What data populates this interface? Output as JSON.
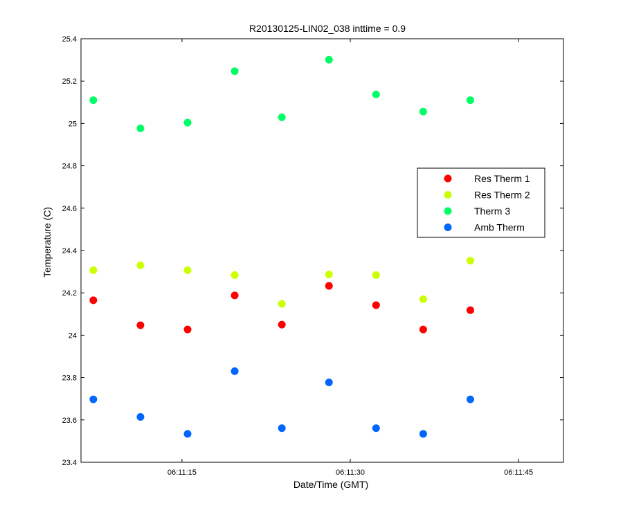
{
  "chart_data": {
    "type": "scatter",
    "title": "R20130125-LIN02_038 inttime = 0.9",
    "xlabel": "Date/Time (GMT)",
    "ylabel": "Temperature (C)",
    "xlim": [
      "06:11:06",
      "06:11:49"
    ],
    "ylim": [
      23.4,
      25.4
    ],
    "x_ticks": [
      "06:11:15",
      "06:11:30",
      "06:11:45"
    ],
    "y_ticks": [
      "23.4",
      "23.6",
      "23.8",
      "24",
      "24.2",
      "24.4",
      "24.6",
      "24.8",
      "25",
      "25.2",
      "25.4"
    ],
    "grid": false,
    "legend_position": "right-middle",
    "x": [
      "06:11:07.1",
      "06:11:11.3",
      "06:11:15.5",
      "06:11:19.7",
      "06:11:23.9",
      "06:11:28.1",
      "06:11:32.3",
      "06:11:36.5",
      "06:11:40.7"
    ],
    "series": [
      {
        "name": "Res Therm 1",
        "color": "#ff0000",
        "values": [
          24.165,
          24.047,
          24.027,
          24.188,
          24.05,
          24.233,
          24.142,
          24.027,
          24.118
        ]
      },
      {
        "name": "Res Therm 2",
        "color": "#ccff00",
        "values": [
          24.307,
          24.33,
          24.307,
          24.284,
          24.148,
          24.287,
          24.284,
          24.17,
          24.352
        ]
      },
      {
        "name": "Therm 3",
        "color": "#00ff66",
        "values": [
          25.11,
          24.977,
          25.004,
          25.247,
          25.029,
          25.301,
          25.137,
          25.056,
          25.11
        ]
      },
      {
        "name": "Amb Therm",
        "color": "#0066ff",
        "values": [
          23.697,
          23.614,
          23.534,
          23.83,
          23.561,
          23.777,
          23.561,
          23.534,
          23.697
        ]
      }
    ]
  }
}
